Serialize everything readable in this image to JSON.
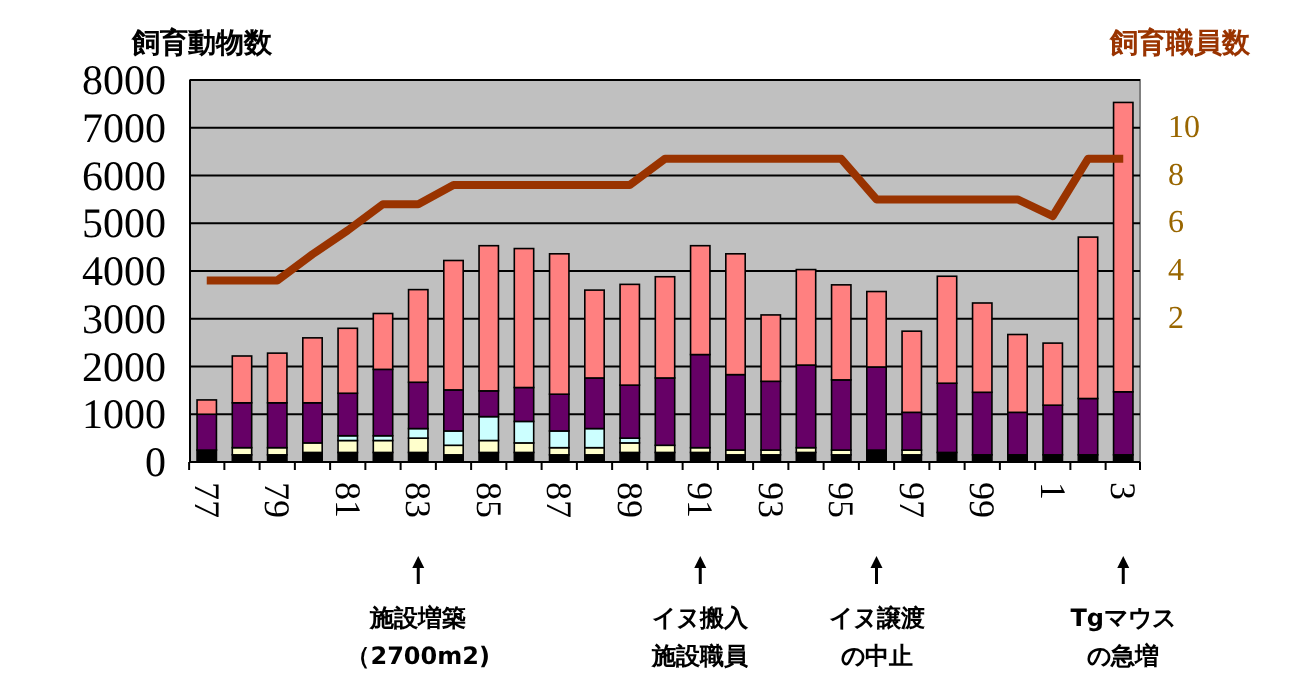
{
  "chart_data": {
    "type": "bar",
    "stacked": true,
    "ylabel": "飼育動物数",
    "y2label": "飼育職員数",
    "categories": [
      "77",
      null,
      "79",
      null,
      "81",
      null,
      "83",
      null,
      "85",
      null,
      "87",
      null,
      "89",
      null,
      "91",
      null,
      "93",
      null,
      "95",
      null,
      "97",
      null,
      "99",
      null,
      "1",
      null,
      "3"
    ],
    "ylim": [
      0,
      8000
    ],
    "yticks": [
      0,
      1000,
      2000,
      3000,
      4000,
      5000,
      6000,
      7000,
      8000
    ],
    "y2lim": [
      -4,
      12
    ],
    "y2ticks": [
      2,
      4,
      6,
      8,
      10
    ],
    "grid": "y",
    "series": [
      {
        "color": "#000000",
        "values": [
          250,
          150,
          150,
          200,
          200,
          200,
          200,
          150,
          200,
          200,
          150,
          150,
          200,
          200,
          200,
          150,
          150,
          200,
          150,
          250,
          150,
          200,
          150,
          150,
          150,
          150,
          150
        ]
      },
      {
        "color": "#ffffcc",
        "values": [
          0,
          150,
          150,
          200,
          250,
          250,
          300,
          200,
          250,
          200,
          150,
          150,
          200,
          150,
          100,
          100,
          100,
          100,
          100,
          0,
          100,
          0,
          0,
          0,
          0,
          0,
          0
        ]
      },
      {
        "color": "#ccffff",
        "values": [
          0,
          0,
          0,
          0,
          100,
          100,
          200,
          300,
          500,
          450,
          350,
          400,
          100,
          0,
          0,
          0,
          0,
          0,
          0,
          0,
          0,
          0,
          0,
          0,
          0,
          0,
          0
        ]
      },
      {
        "color": "#660066",
        "values": [
          750,
          940,
          940,
          840,
          890,
          1390,
          970,
          860,
          540,
          710,
          770,
          1060,
          1110,
          1410,
          1950,
          1580,
          1440,
          1730,
          1470,
          1740,
          790,
          1450,
          1310,
          890,
          1040,
          1180,
          1320
        ]
      },
      {
        "color": "#ff8080",
        "values": [
          300,
          980,
          1040,
          1360,
          1360,
          1170,
          1940,
          2710,
          3040,
          2910,
          2940,
          1840,
          2110,
          2120,
          2280,
          2530,
          1390,
          2000,
          1990,
          1580,
          1700,
          2240,
          1870,
          1630,
          1300,
          3380,
          6060
        ]
      },
      {
        "type": "line",
        "axis": "y2",
        "color": "#993300",
        "marker": "none",
        "line_style": "solid",
        "values": [
          3.6,
          3.6,
          3.6,
          4.7,
          5.7,
          6.8,
          6.8,
          7.6,
          7.6,
          7.6,
          7.6,
          7.6,
          7.6,
          8.7,
          8.7,
          8.7,
          8.7,
          8.7,
          8.7,
          7,
          7,
          7,
          7,
          7,
          6.3,
          8.7,
          8.7
        ]
      }
    ],
    "annotations": [
      {
        "text": "施設増築（2700m2)",
        "x": "83"
      },
      {
        "text": "イヌ搬入施設職員",
        "x": "91"
      },
      "イヌ譲渡の中止",
      {
        "text": "Tgマウスの急増",
        "x": "3"
      }
    ]
  }
}
